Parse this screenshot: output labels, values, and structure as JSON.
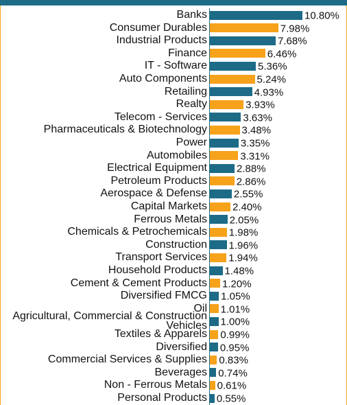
{
  "chart_data": {
    "type": "bar",
    "orientation": "horizontal",
    "categories": [
      "Banks",
      "Consumer Durables",
      "Industrial Products",
      "Finance",
      "IT - Software",
      "Auto Components",
      "Retailing",
      "Realty",
      "Telecom - Services",
      "Pharmaceuticals & Biotechnology",
      "Power",
      "Automobiles",
      "Electrical Equipment",
      "Petroleum Products",
      "Aerospace & Defense",
      "Capital Markets",
      "Ferrous Metals",
      "Chemicals & Petrochemicals",
      "Construction",
      "Transport Services",
      "Household Products",
      "Cement & Cement Products",
      "Diversified FMCG",
      "Oil",
      "Agricultural, Commercial & Construction Vehicles",
      "Textiles & Apparels",
      "Diversified",
      "Commercial Services & Supplies",
      "Beverages",
      "Non - Ferrous Metals",
      "Personal Products"
    ],
    "values": [
      10.8,
      7.98,
      7.68,
      6.46,
      5.36,
      5.24,
      4.93,
      3.93,
      3.63,
      3.48,
      3.35,
      3.31,
      2.88,
      2.86,
      2.55,
      2.4,
      2.05,
      1.98,
      1.96,
      1.94,
      1.48,
      1.2,
      1.05,
      1.01,
      1.0,
      0.99,
      0.95,
      0.83,
      0.74,
      0.61,
      0.55
    ],
    "value_labels": [
      "10.80%",
      "7.98%",
      "7.68%",
      "6.46%",
      "5.36%",
      "5.24%",
      "4.93%",
      "3.93%",
      "3.63%",
      "3.48%",
      "3.35%",
      "3.31%",
      "2.88%",
      "2.86%",
      "2.55%",
      "2.40%",
      "2.05%",
      "1.98%",
      "1.96%",
      "1.94%",
      "1.48%",
      "1.20%",
      "1.05%",
      "1.01%",
      "1.00%",
      "0.99%",
      "0.95%",
      "0.83%",
      "0.74%",
      "0.61%",
      "0.55%"
    ],
    "colors": [
      "#1d6b87",
      "#f7a21b"
    ]
  }
}
